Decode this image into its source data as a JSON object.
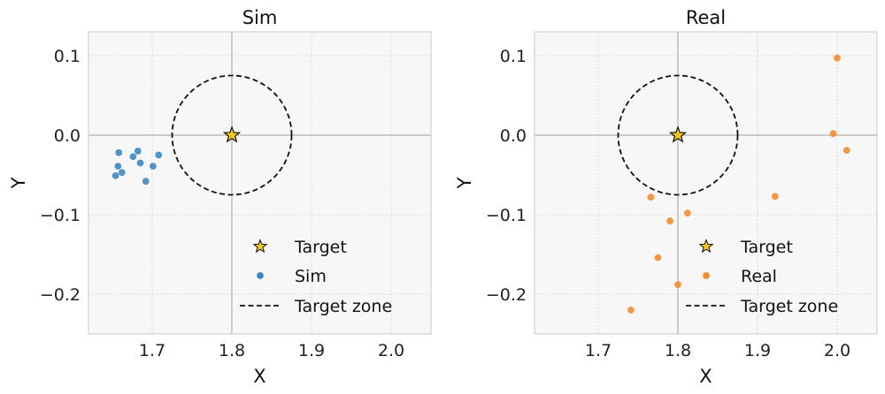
{
  "chart_data": [
    {
      "type": "scatter",
      "title": "Sim",
      "xlabel": "X",
      "ylabel": "Y",
      "xlim": [
        1.62,
        2.05
      ],
      "ylim": [
        -0.25,
        0.13
      ],
      "xticks": [
        1.7,
        1.8,
        1.9,
        2.0
      ],
      "yticks": [
        0.1,
        0.0,
        -0.1,
        -0.2
      ],
      "xtick_labels": [
        "1.7",
        "1.8",
        "1.9",
        "2.0"
      ],
      "ytick_labels": [
        "0.1",
        "0.0",
        "−0.1",
        "−0.2"
      ],
      "grid": true,
      "legend_position": "bottom-right",
      "target": {
        "name": "Target",
        "x": 1.8,
        "y": 0.0,
        "color": "#f2c81e"
      },
      "target_zone": {
        "name": "Target zone",
        "center": [
          1.8,
          0.0
        ],
        "radius": 0.075
      },
      "series": [
        {
          "name": "Sim",
          "color": "#3a86c0",
          "points": [
            [
              1.658,
              -0.022
            ],
            [
              1.682,
              -0.02
            ],
            [
              1.676,
              -0.027
            ],
            [
              1.708,
              -0.025
            ],
            [
              1.657,
              -0.039
            ],
            [
              1.685,
              -0.035
            ],
            [
              1.701,
              -0.039
            ],
            [
              1.662,
              -0.047
            ],
            [
              1.654,
              -0.051
            ],
            [
              1.692,
              -0.058
            ]
          ]
        }
      ]
    },
    {
      "type": "scatter",
      "title": "Real",
      "xlabel": "X",
      "ylabel": "Y",
      "xlim": [
        1.62,
        2.05
      ],
      "ylim": [
        -0.25,
        0.13
      ],
      "xticks": [
        1.7,
        1.8,
        1.9,
        2.0
      ],
      "yticks": [
        0.1,
        0.0,
        -0.1,
        -0.2
      ],
      "xtick_labels": [
        "1.7",
        "1.8",
        "1.9",
        "2.0"
      ],
      "ytick_labels": [
        "0.1",
        "0.0",
        "−0.1",
        "−0.2"
      ],
      "grid": true,
      "legend_position": "bottom-right",
      "target": {
        "name": "Target",
        "x": 1.8,
        "y": 0.0,
        "color": "#f2c81e"
      },
      "target_zone": {
        "name": "Target zone",
        "center": [
          1.8,
          0.0
        ],
        "radius": 0.075
      },
      "series": [
        {
          "name": "Real",
          "color": "#f58a2a",
          "points": [
            [
              2.0,
              0.097
            ],
            [
              1.995,
              0.002
            ],
            [
              2.012,
              -0.019
            ],
            [
              1.922,
              -0.077
            ],
            [
              1.766,
              -0.078
            ],
            [
              1.812,
              -0.098
            ],
            [
              1.79,
              -0.108
            ],
            [
              1.775,
              -0.154
            ],
            [
              1.8,
              -0.188
            ],
            [
              1.741,
              -0.22
            ]
          ]
        }
      ]
    }
  ]
}
